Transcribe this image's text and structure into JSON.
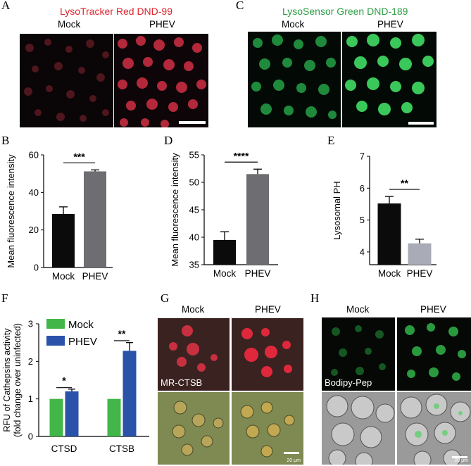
{
  "panels": {
    "A": {
      "letter": "A",
      "title": "LysoTracker Red DND-99",
      "title_color": "#e0262d",
      "columns": [
        "Mock",
        "PHEV"
      ]
    },
    "C": {
      "letter": "C",
      "title": "LysoSensor Green DND-189",
      "title_color": "#2e9e46",
      "columns": [
        "Mock",
        "PHEV"
      ]
    },
    "G": {
      "letter": "G",
      "columns": [
        "Mock",
        "PHEV"
      ],
      "stain_label": "MR-CTSB",
      "scale_label": "20 μm"
    },
    "H": {
      "letter": "H",
      "columns": [
        "Mock",
        "PHEV"
      ],
      "stain_label": "Bodipy-Pep",
      "scale_label": "20 μm"
    }
  },
  "chart_data": [
    {
      "id": "B",
      "letter": "B",
      "type": "bar",
      "categories": [
        "Mock",
        "PHEV"
      ],
      "values": [
        28.5,
        51.2
      ],
      "errors": [
        3.8,
        0.8
      ],
      "colors": [
        "#0b0b0b",
        "#6e6e72"
      ],
      "ylabel": "Mean fluorescence intensity",
      "ylim": [
        0,
        60
      ],
      "yticks": [
        "0",
        "20",
        "40",
        "60"
      ],
      "significance": "***"
    },
    {
      "id": "D",
      "letter": "D",
      "type": "bar",
      "categories": [
        "Mock",
        "PHEV"
      ],
      "values": [
        39.5,
        51.5
      ],
      "errors": [
        1.5,
        0.9
      ],
      "colors": [
        "#0b0b0b",
        "#6e6e72"
      ],
      "ylabel": "Mean fluorescence intensity",
      "ylim": [
        35,
        55
      ],
      "yticks": [
        "35",
        "40",
        "45",
        "50",
        "55"
      ],
      "significance": "****"
    },
    {
      "id": "E",
      "letter": "E",
      "type": "bar",
      "categories": [
        "Mock",
        "PHEV"
      ],
      "values": [
        5.52,
        4.27
      ],
      "errors": [
        0.22,
        0.13
      ],
      "colors": [
        "#0b0b0b",
        "#a9abb7"
      ],
      "ylabel": "Lysosomal PH",
      "ylim": [
        3.6,
        7
      ],
      "yticks": [
        "4",
        "5",
        "6",
        "7"
      ],
      "significance": "**"
    },
    {
      "id": "F",
      "letter": "F",
      "type": "bar",
      "categories": [
        "CTSD",
        "CTSB"
      ],
      "series": [
        {
          "name": "Mock",
          "values": [
            1.0,
            1.0
          ],
          "errors": [
            0,
            0
          ],
          "color": "#42b648"
        },
        {
          "name": "PHEV",
          "values": [
            1.2,
            2.28
          ],
          "errors": [
            0.06,
            0.22
          ],
          "color": "#2a52a8"
        }
      ],
      "ylabel": "RFU of Cathepsins activity\n(fold change over uninfected)",
      "ylim": [
        0,
        3
      ],
      "yticks": [
        "0",
        "1",
        "2",
        "3"
      ],
      "significance": [
        "*",
        "**"
      ],
      "legend": "top-left"
    }
  ]
}
